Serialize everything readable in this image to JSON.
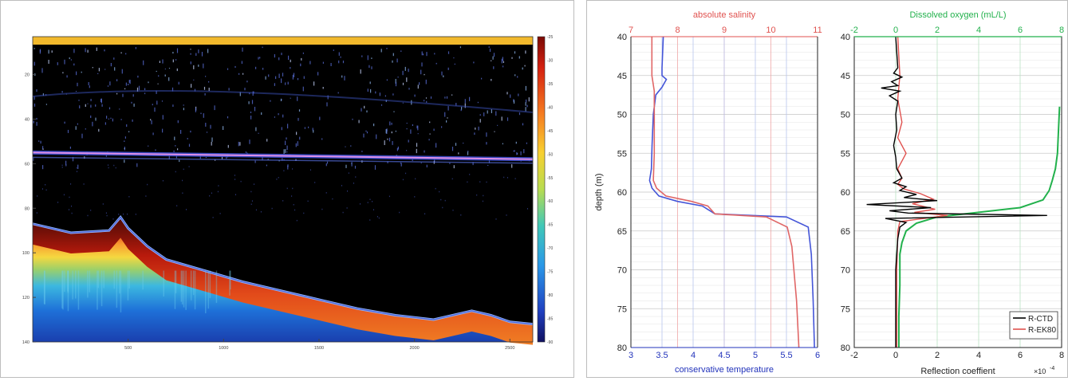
{
  "chart_data": [
    {
      "type": "heatmap",
      "title": "",
      "x_ticks": [
        "500",
        "1000",
        "1500",
        "2000",
        "2500"
      ],
      "y_ticks": [
        "20",
        "40",
        "60",
        "80",
        "100",
        "120",
        "140"
      ],
      "colorbar_ticks": [
        "-25",
        "-30",
        "-35",
        "-40",
        "-45",
        "-50",
        "-55",
        "-60",
        "-65",
        "-70",
        "-75",
        "-80",
        "-85",
        "-90"
      ],
      "xlim": [
        0,
        2620
      ],
      "ylim": [
        140,
        3
      ],
      "clim": [
        -90,
        -25
      ],
      "bottom_depth_trace": {
        "x": [
          0,
          200,
          400,
          460,
          500,
          600,
          700,
          900,
          1100,
          1300,
          1500,
          1700,
          1900,
          2100,
          2250,
          2300,
          2400,
          2500,
          2620
        ],
        "depth": [
          87,
          91,
          90,
          84,
          89,
          97,
          103,
          108,
          113,
          117,
          121,
          125,
          128,
          130,
          127,
          126,
          128,
          131,
          132
        ]
      },
      "scattering_layer_depth": [
        55,
        58
      ],
      "colors": {
        "top_bar": "#f2b92c",
        "background": "#000000"
      }
    },
    {
      "type": "line",
      "top_axis_label": "absolute salinity",
      "bottom_axis_label": "conservative temperature",
      "ylabel": "depth (m)",
      "top_ticks": [
        "7",
        "8",
        "9",
        "10",
        "11"
      ],
      "bottom_ticks": [
        "3",
        "3.5",
        "4",
        "4.5",
        "5",
        "5.5",
        "6"
      ],
      "y_ticks": [
        "40",
        "45",
        "50",
        "55",
        "60",
        "65",
        "70",
        "75",
        "80"
      ],
      "top_xlim": [
        7,
        11
      ],
      "bottom_xlim": [
        3,
        6
      ],
      "ylim": [
        80,
        40
      ],
      "series": [
        {
          "axis": "bottom",
          "color": "#4455d8",
          "x": [
            3.52,
            3.5,
            3.5,
            3.57,
            3.5,
            3.4,
            3.36,
            3.34,
            3.33,
            3.3,
            3.34,
            3.45,
            3.75,
            4.15,
            4.25,
            4.35,
            5.5,
            5.85,
            5.9,
            5.93,
            5.95
          ],
          "depth": [
            40,
            44,
            45,
            45.5,
            46.5,
            47.5,
            50,
            54,
            57,
            58.5,
            59.5,
            60.5,
            61.2,
            61.8,
            62.3,
            62.8,
            63.2,
            64.5,
            68,
            74,
            80
          ]
        },
        {
          "axis": "top",
          "color": "#e06666",
          "x": [
            7.45,
            7.45,
            7.5,
            7.5,
            7.48,
            7.55,
            7.75,
            8.3,
            8.65,
            8.8,
            9.9,
            10.35,
            10.45,
            10.55,
            10.6
          ],
          "depth": [
            40,
            45,
            47,
            55,
            58.5,
            59.5,
            60.5,
            61.2,
            61.8,
            62.8,
            63.2,
            64.5,
            67,
            74,
            80
          ]
        }
      ],
      "colors": {
        "top_axis": "#e0524f",
        "bottom_axis": "#2233bb"
      }
    },
    {
      "type": "line",
      "top_axis_label": "Dissolved oxygen (mL/L)",
      "bottom_axis_label": "Reflection coeffient",
      "x_multiplier": "×10",
      "x_multiplier_exp": "-4",
      "top_ticks": [
        "-2",
        "0",
        "2",
        "4",
        "6",
        "8"
      ],
      "bottom_ticks": [
        "-2",
        "0",
        "2",
        "4",
        "6",
        "8"
      ],
      "y_ticks": [
        "40",
        "45",
        "50",
        "55",
        "60",
        "65",
        "70",
        "75",
        "80"
      ],
      "top_xlim": [
        -2,
        8
      ],
      "bottom_xlim": [
        -2,
        8
      ],
      "ylim": [
        80,
        40
      ],
      "legend": {
        "position": "bottom-right",
        "entries": [
          "R-CTD",
          "R-EK80"
        ]
      },
      "series": [
        {
          "name": "R-CTD",
          "axis": "bottom",
          "color": "#000000",
          "x": [
            0,
            0.1,
            -0.1,
            0.3,
            -0.2,
            0.1,
            -0.7,
            0.2,
            -0.3,
            0.1,
            0,
            0.05,
            -0.1,
            0,
            0.05,
            0.3,
            -0.1,
            0.5,
            0.2,
            1.0,
            0.4,
            2.0,
            -1.4,
            1.7,
            -0.3,
            0.6,
            7.3,
            -0.5,
            0.5,
            0.2,
            0.1,
            0,
            0
          ],
          "depth": [
            40,
            44,
            44.7,
            45.2,
            45.8,
            46.3,
            46.6,
            47,
            47.6,
            48.3,
            50,
            52,
            54,
            55.5,
            57,
            58.2,
            58.8,
            59.3,
            59.8,
            60.3,
            60.7,
            61.1,
            61.6,
            62.0,
            62.4,
            62.7,
            63.0,
            63.4,
            63.9,
            64.5,
            66,
            70,
            80
          ]
        },
        {
          "name": "R-EK80",
          "axis": "bottom",
          "color": "#e0524f",
          "x": [
            0.1,
            0.2,
            0.1,
            0.3,
            0.1,
            0.5,
            0.1,
            0.3,
            0.1,
            0.4,
            1.2,
            1.8,
            0.8,
            1.9,
            0.9,
            2.5,
            0.2,
            0.1,
            0.05,
            0.05
          ],
          "depth": [
            40,
            45,
            48,
            51,
            53,
            55,
            57,
            58.2,
            59,
            59.6,
            60.2,
            60.9,
            61.5,
            62.2,
            62.6,
            63.0,
            63.8,
            65,
            70,
            80
          ]
        },
        {
          "axis": "top",
          "color": "#22b14c",
          "x": [
            7.9,
            7.85,
            7.8,
            7.7,
            7.55,
            7.4,
            7.1,
            6.0,
            4.0,
            2.0,
            1.0,
            0.5,
            0.3,
            0.2,
            0.2,
            0.15,
            0.15
          ],
          "depth": [
            49,
            52,
            55,
            57,
            58.5,
            59.8,
            61.0,
            62.0,
            62.6,
            63.2,
            64.0,
            65.0,
            66.5,
            68,
            72,
            76,
            80
          ]
        }
      ],
      "colors": {
        "top_axis": "#22b14c"
      }
    }
  ]
}
